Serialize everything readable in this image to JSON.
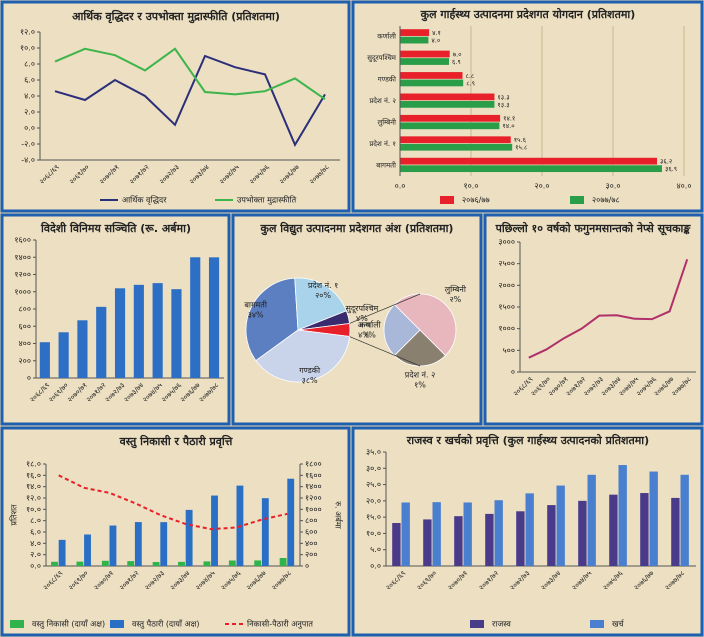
{
  "chart_data": [
    {
      "type": "line",
      "title": "आर्थिक वृद्धिदर र उपभोक्ता मुद्रास्फीति (प्रतिशतमा)",
      "categories": [
        "२०६८/६९",
        "२०६९/७०",
        "२०७०/७१",
        "२०७१/७२",
        "२०७२/७३",
        "२०७३/७४",
        "२०७४/७५",
        "२०७५/७६",
        "२०७६/७७",
        "२०७७/७८"
      ],
      "series": [
        {
          "name": "आर्थिक वृद्धिदर",
          "color": "#2b2f7a",
          "values": [
            4.6,
            3.5,
            6.0,
            4.0,
            0.4,
            9.0,
            7.6,
            6.7,
            -2.1,
            4.2
          ]
        },
        {
          "name": "उपभोक्ता मुद्रास्फीति",
          "color": "#3db54a",
          "values": [
            8.3,
            9.9,
            9.1,
            7.2,
            9.9,
            4.5,
            4.2,
            4.6,
            6.2,
            3.6
          ]
        }
      ],
      "ylim": [
        -4,
        12
      ],
      "yticks": [
        {
          "value": -4,
          "label": "-४.०"
        },
        {
          "value": -2,
          "label": "-२.०"
        },
        {
          "value": 0,
          "label": "०.०"
        },
        {
          "value": 2,
          "label": "२.०"
        },
        {
          "value": 4,
          "label": "४.०"
        },
        {
          "value": 6,
          "label": "६.०"
        },
        {
          "value": 8,
          "label": "८.०"
        },
        {
          "value": 10,
          "label": "१०.०"
        },
        {
          "value": 12,
          "label": "१२.०"
        }
      ],
      "grid": false
    },
    {
      "type": "bar",
      "orientation": "horizontal",
      "title": "कुल गार्हस्थ्य उत्पादनमा प्रदेशगत योगदान (प्रतिशतमा)",
      "categories": [
        "कर्णाली",
        "सुदूरपश्चिम",
        "गण्डकी",
        "प्रदेश नं. २",
        "लुम्बिनी",
        "प्रदेश नं. १",
        "बागमती"
      ],
      "series": [
        {
          "name": "२०७६/७७",
          "color": "#e8202a",
          "values": [
            4.1,
            7.0,
            8.8,
            13.3,
            14.1,
            15.6,
            36.2
          ],
          "value_labels": [
            "४.१",
            "७.०",
            "८.८",
            "१३.३",
            "१४.१",
            "१५.६",
            "३६.२"
          ]
        },
        {
          "name": "२०७७/७८",
          "color": "#2a9d48",
          "values": [
            4.0,
            6.9,
            8.9,
            13.3,
            14.0,
            15.8,
            36.9
          ],
          "value_labels": [
            "४.०",
            "६.९",
            "८.९",
            "१३.३",
            "१४.०",
            "१५.८",
            "३६.९"
          ]
        }
      ],
      "xlim": [
        0,
        40
      ],
      "xticks": [
        {
          "value": 0,
          "label": "०.०"
        },
        {
          "value": 10,
          "label": "१०.०"
        },
        {
          "value": 20,
          "label": "२०.०"
        },
        {
          "value": 30,
          "label": "३०.०"
        },
        {
          "value": 40,
          "label": "४०.०"
        }
      ],
      "grid": true
    },
    {
      "type": "bar",
      "title": "विदेशी विनिमय सञ्चिति (रू. अर्बमा)",
      "categories": [
        "२०६८/६९",
        "२०६९/७०",
        "२०७०/७१",
        "२०७१/७२",
        "२०७२/७३",
        "२०७३/७४",
        "२०७४/७५",
        "२०७५/७६",
        "२०७६/७७",
        "२०७७/७८"
      ],
      "values": [
        415,
        530,
        669,
        825,
        1040,
        1080,
        1100,
        1030,
        1400,
        1399
      ],
      "color": "#2e6fc6",
      "ylim": [
        0,
        1600
      ],
      "yticks": [
        {
          "value": 0,
          "label": "०"
        },
        {
          "value": 200,
          "label": "२००"
        },
        {
          "value": 400,
          "label": "४००"
        },
        {
          "value": 600,
          "label": "६००"
        },
        {
          "value": 800,
          "label": "८००"
        },
        {
          "value": 1000,
          "label": "१०००"
        },
        {
          "value": 1200,
          "label": "१२००"
        },
        {
          "value": 1400,
          "label": "१४००"
        },
        {
          "value": 1600,
          "label": "१६००"
        }
      ],
      "grid": false
    },
    {
      "type": "pie",
      "title": "कुल विद्युत उत्पादनमा प्रदेशगत अंश (प्रतिशतमा)",
      "categories": [
        "बागमती",
        "प्रदेश नं. १",
        "सुदूरपश्चिम",
        "अन्य",
        "गण्डकी"
      ],
      "values": [
        34,
        20,
        4,
        4,
        38
      ],
      "value_labels": [
        "३४%",
        "२०%",
        "४%",
        "४%",
        "३८%"
      ],
      "colors": [
        "#5b7fc0",
        "#a9d3ea",
        "#3a2a6e",
        "#e8202a",
        "#c9d3ea"
      ],
      "breakdown": {
        "categories": [
          "प्रदेश नं. २",
          "कर्णाली",
          "लुम्बिनी"
        ],
        "values": [
          1,
          1,
          2
        ],
        "value_labels": [
          "१%",
          "१%",
          "२%"
        ],
        "colors": [
          "#8a8070",
          "#a9b8d8",
          "#e8b6bd"
        ]
      }
    },
    {
      "type": "line",
      "title": "पछिल्लो १० वर्षको फगुनमसान्तको नेप्से सूचकाङ्क",
      "categories": [
        "२०६८/६९",
        "२०६९/७०",
        "२०७०/७१",
        "२०७१/७२",
        "२०७२/७३",
        "२०७३/७४",
        "२०७४/७५",
        "२०७५/७६",
        "२०७६/७७",
        "२०७७/७८"
      ],
      "values": [
        330,
        520,
        780,
        1000,
        1300,
        1310,
        1230,
        1220,
        1400,
        2600
      ],
      "color": "#b0306a",
      "ylim": [
        0,
        3000
      ],
      "yticks": [
        {
          "value": 0,
          "label": "०"
        },
        {
          "value": 500,
          "label": "५००"
        },
        {
          "value": 1000,
          "label": "१०००"
        },
        {
          "value": 1500,
          "label": "१५००"
        },
        {
          "value": 2000,
          "label": "२०००"
        },
        {
          "value": 2500,
          "label": "२५००"
        },
        {
          "value": 3000,
          "label": "३०००"
        }
      ],
      "grid": false
    },
    {
      "type": "combo",
      "title": "वस्तु निकासी र पैठारी प्रवृत्ति",
      "y_label": "प्रतिशत",
      "y2_label": "रु. अर्बमा",
      "categories": [
        "२०६८/६९",
        "२०६९/७०",
        "२०७०/७१",
        "२०७१/७२",
        "२०७२/७३",
        "२०७३/७४",
        "२०७४/७५",
        "२०७५/७६",
        "२०७६/७७",
        "२०७७/७८"
      ],
      "series": [
        {
          "name": "वस्तु निकासी (दायाँ अक्ष)",
          "type": "bar",
          "axis": "y2",
          "color": "#2fb34a",
          "values": [
            74,
            77,
            92,
            86,
            70,
            73,
            81,
            97,
            98,
            141
          ]
        },
        {
          "name": "वस्तु पैठारी (दायाँ अक्ष)",
          "type": "bar",
          "axis": "y2",
          "color": "#2a6fc6",
          "values": [
            461,
            556,
            714,
            775,
            774,
            990,
            1243,
            1419,
            1197,
            1540
          ]
        },
        {
          "name": "निकासी-पैठारी अनुपात",
          "type": "line",
          "style": "dashed",
          "color": "#e8202a",
          "values": [
            16.0,
            13.8,
            12.9,
            11.1,
            9.0,
            7.4,
            6.5,
            6.8,
            8.2,
            9.2
          ]
        }
      ],
      "ylim": [
        0,
        18
      ],
      "yticks": [
        {
          "value": 0,
          "label": "०.०"
        },
        {
          "value": 2,
          "label": "२.०"
        },
        {
          "value": 4,
          "label": "४.०"
        },
        {
          "value": 6,
          "label": "६.०"
        },
        {
          "value": 8,
          "label": "८.०"
        },
        {
          "value": 10,
          "label": "१०.०"
        },
        {
          "value": 12,
          "label": "१२.०"
        },
        {
          "value": 14,
          "label": "१४.०"
        },
        {
          "value": 16,
          "label": "१६.०"
        },
        {
          "value": 18,
          "label": "१८.०"
        }
      ],
      "y2lim": [
        0,
        1800
      ],
      "y2ticks": [
        {
          "value": 0,
          "label": "०"
        },
        {
          "value": 200,
          "label": "२००"
        },
        {
          "value": 400,
          "label": "४००"
        },
        {
          "value": 600,
          "label": "६००"
        },
        {
          "value": 800,
          "label": "८००"
        },
        {
          "value": 1000,
          "label": "१०००"
        },
        {
          "value": 1200,
          "label": "१२००"
        },
        {
          "value": 1400,
          "label": "१४००"
        },
        {
          "value": 1600,
          "label": "१६००"
        },
        {
          "value": 1800,
          "label": "१८००"
        }
      ]
    },
    {
      "type": "bar",
      "title": "राजस्व र खर्चको प्रवृत्ति (कुल गार्हस्थ्य उत्पादनको प्रतिशतमा)",
      "categories": [
        "२०६८/६९",
        "२०६९/७०",
        "२०७०/७१",
        "२०७१/७२",
        "२०७२/७३",
        "२०७३/७४",
        "२०७४/७५",
        "२०७५/७६",
        "२०७६/७७",
        "२०७७/७८"
      ],
      "series": [
        {
          "name": "राजस्व",
          "color": "#4a3a8a",
          "values": [
            13.2,
            14.3,
            15.3,
            16.0,
            16.8,
            18.7,
            20.0,
            21.9,
            22.4,
            20.9
          ]
        },
        {
          "name": "खर्च",
          "color": "#4a7fd0",
          "values": [
            19.5,
            19.6,
            19.5,
            20.2,
            22.3,
            24.7,
            28.0,
            31.0,
            29.0,
            28.0
          ]
        }
      ],
      "ylim": [
        0,
        35
      ],
      "yticks": [
        {
          "value": 0,
          "label": "०.०"
        },
        {
          "value": 5,
          "label": "५.०"
        },
        {
          "value": 10,
          "label": "१०.०"
        },
        {
          "value": 15,
          "label": "१५.०"
        },
        {
          "value": 20,
          "label": "२०.०"
        },
        {
          "value": 25,
          "label": "२५.०"
        },
        {
          "value": 30,
          "label": "३०.०"
        },
        {
          "value": 35,
          "label": "३५.०"
        }
      ],
      "grid": false
    }
  ]
}
